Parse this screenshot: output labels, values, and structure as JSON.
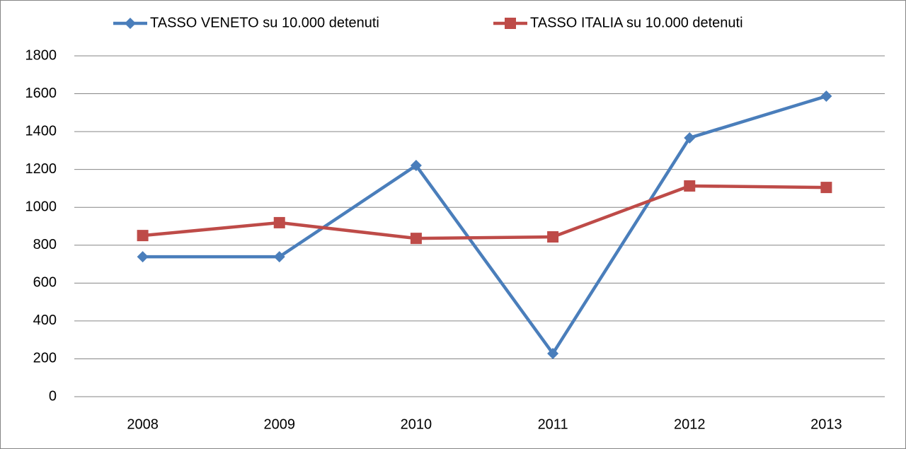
{
  "chart_data": {
    "type": "line",
    "categories": [
      "2008",
      "2009",
      "2010",
      "2011",
      "2012",
      "2013"
    ],
    "series": [
      {
        "name": "TASSO VENETO su 10.000 detenuti",
        "color": "#4a7ebb",
        "marker": "diamond",
        "values": [
          739,
          739,
          1221,
          228,
          1367,
          1587
        ]
      },
      {
        "name": "TASSO ITALIA su 10.000 detenuti",
        "color": "#be4b48",
        "marker": "square",
        "values": [
          851,
          919,
          836,
          844,
          1113,
          1105
        ]
      }
    ],
    "ylim": [
      0,
      1800
    ],
    "yticks": [
      0,
      200,
      400,
      600,
      800,
      1000,
      1200,
      1400,
      1600,
      1800
    ],
    "grid": true,
    "legend": "top"
  }
}
